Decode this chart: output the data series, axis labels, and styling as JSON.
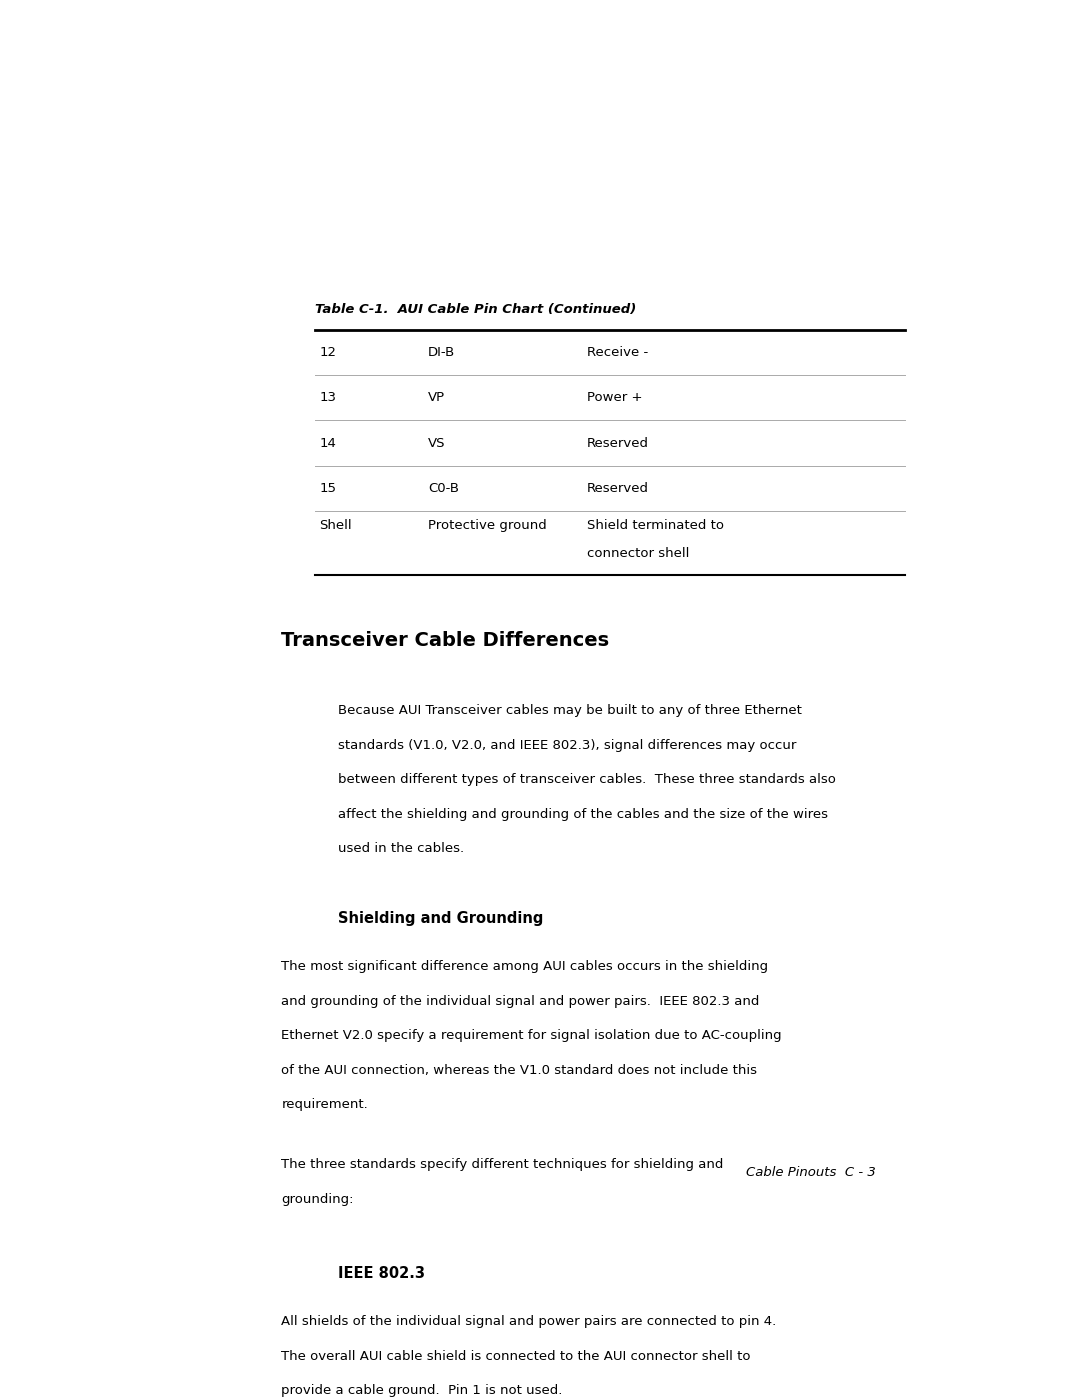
{
  "bg_color": "#ffffff",
  "page_width": 10.8,
  "page_height": 13.97,
  "table_title": "Table C-1.  AUI Cable Pin Chart (Continued)",
  "table_rows": [
    [
      "12",
      "DI-B",
      "Receive -"
    ],
    [
      "13",
      "VP",
      "Power +"
    ],
    [
      "14",
      "VS",
      "Reserved"
    ],
    [
      "15",
      "C0-B",
      "Reserved"
    ],
    [
      "Shell",
      "Protective ground",
      "Shield terminated to\nconnector shell"
    ]
  ],
  "section1_heading": "Transceiver Cable Differences",
  "section1_body": "Because AUI Transceiver cables may be built to any of three Ethernet\nstandards (V1.0, V2.0, and IEEE 802.3), signal differences may occur\nbetween different types of transceiver cables.  These three standards also\naffect the shielding and grounding of the cables and the size of the wires\nused in the cables.",
  "subsection1_heading": "Shielding and Grounding",
  "subsection1_body1": "The most significant difference among AUI cables occurs in the shielding\nand grounding of the individual signal and power pairs.  IEEE 802.3 and\nEthernet V2.0 specify a requirement for signal isolation due to AC-coupling\nof the AUI connection, whereas the V1.0 standard does not include this\nrequirement.",
  "subsection1_body2": "The three standards specify different techniques for shielding and\ngrounding:",
  "subsection2_heading": "IEEE 802.3",
  "subsection2_body": "All shields of the individual signal and power pairs are connected to pin 4.\nThe overall AUI cable shield is connected to the AUI connector shell to\nprovide a cable ground.  Pin 1 is not used.",
  "footer_text": "Cable Pinouts  C - 3"
}
